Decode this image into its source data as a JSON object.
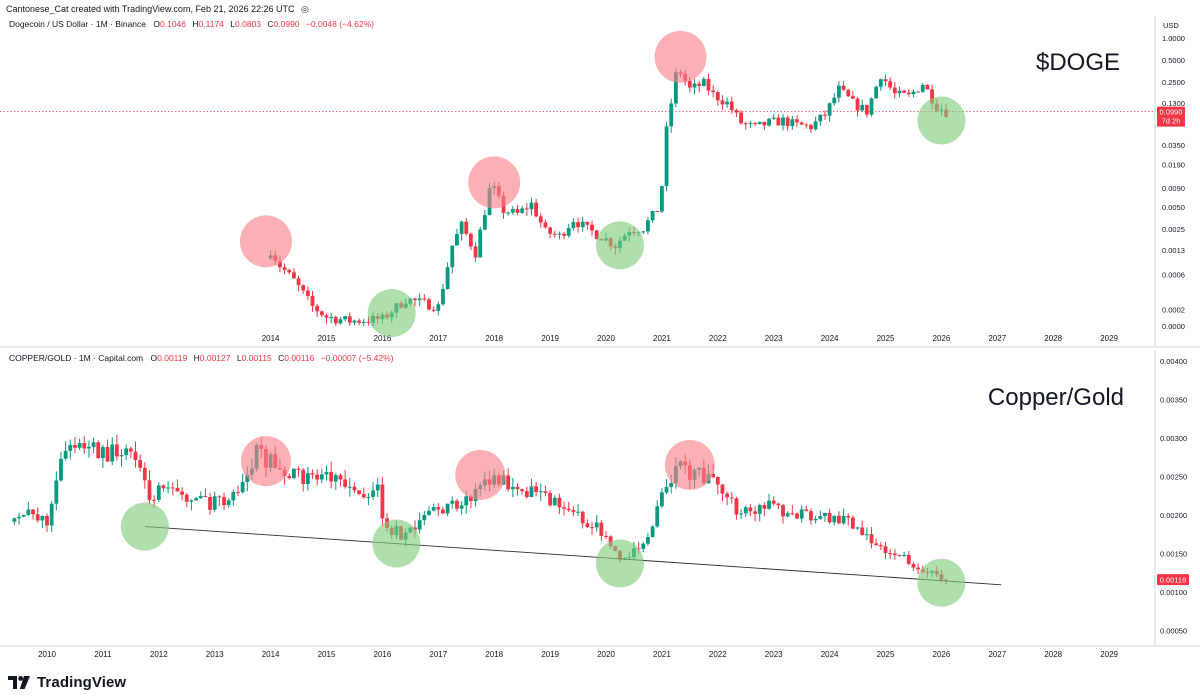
{
  "header": {
    "author_line": "Cantonese_Cat created with TradingView.com, Feb 21, 2026 22:26 UTC",
    "target_glyph": "◎"
  },
  "footer": {
    "logo_text": "TradingView"
  },
  "chart_data": [
    {
      "type": "candlestick",
      "legend": {
        "symbol": "Dogecoin / US Dollar · 1M · Binance",
        "o_label": "O",
        "o": "0.1046",
        "h_label": "H",
        "h": "0.1174",
        "l_label": "L",
        "l": "0.0803",
        "c_label": "C",
        "c": "0.0990",
        "change": "−0.0048 (−4.62%)"
      },
      "title": "$DOGE",
      "y_scale": "log",
      "currency": "USD",
      "y_ticks": [
        "1.0000",
        "0.5000",
        "0.2500",
        "0.1300",
        "0.0700",
        "0.0350",
        "0.0190",
        "0.0090",
        "0.0050",
        "0.0025",
        "0.0013",
        "0.0006",
        "0.0002",
        "0.0000"
      ],
      "x_ticks": [
        "2014",
        "2015",
        "2016",
        "2017",
        "2018",
        "2019",
        "2020",
        "2021",
        "2022",
        "2023",
        "2024",
        "2025",
        "2026",
        "2027",
        "2028",
        "2029"
      ],
      "last_price": "0.0990",
      "countdown": "7d 2h",
      "grid": false,
      "colors": {
        "up": "#089981",
        "down": "#f23645",
        "top_circle": "#f8a3a8",
        "bottom_circle": "#9ed79c"
      },
      "series": [
        {
          "name": "",
          "points": [
            [
              "2014-01",
              0.0013
            ],
            [
              "2014-03",
              0.0008
            ],
            [
              "2014-06",
              0.0005
            ],
            [
              "2014-10",
              0.00022
            ],
            [
              "2015-01",
              0.00016
            ],
            [
              "2015-06",
              0.00014
            ],
            [
              "2016-01",
              0.00015
            ],
            [
              "2016-06",
              0.00028
            ],
            [
              "2016-12",
              0.00023
            ],
            [
              "2017-01",
              0.00022
            ],
            [
              "2017-04",
              0.0015
            ],
            [
              "2017-06",
              0.0028
            ],
            [
              "2017-09",
              0.0012
            ],
            [
              "2017-12",
              0.0085
            ],
            [
              "2018-01",
              0.0085
            ],
            [
              "2018-03",
              0.0045
            ],
            [
              "2018-06",
              0.004
            ],
            [
              "2018-09",
              0.0055
            ],
            [
              "2018-12",
              0.0023
            ],
            [
              "2019-03",
              0.002
            ],
            [
              "2019-06",
              0.0034
            ],
            [
              "2019-09",
              0.0025
            ],
            [
              "2019-12",
              0.002
            ],
            [
              "2020-03",
              0.0015
            ],
            [
              "2020-06",
              0.0025
            ],
            [
              "2020-09",
              0.0026
            ],
            [
              "2020-12",
              0.0046
            ],
            [
              "2021-01",
              0.0099
            ],
            [
              "2021-02",
              0.055
            ],
            [
              "2021-04",
              0.31
            ],
            [
              "2021-05",
              0.34
            ],
            [
              "2021-07",
              0.2
            ],
            [
              "2021-10",
              0.24
            ],
            [
              "2021-12",
              0.17
            ],
            [
              "2022-03",
              0.13
            ],
            [
              "2022-06",
              0.07
            ],
            [
              "2022-09",
              0.06
            ],
            [
              "2022-12",
              0.07
            ],
            [
              "2023-03",
              0.075
            ],
            [
              "2023-06",
              0.065
            ],
            [
              "2023-09",
              0.062
            ],
            [
              "2023-12",
              0.09
            ],
            [
              "2024-03",
              0.2
            ],
            [
              "2024-06",
              0.13
            ],
            [
              "2024-09",
              0.1
            ],
            [
              "2024-12",
              0.32
            ],
            [
              "2025-03",
              0.17
            ],
            [
              "2025-06",
              0.16
            ],
            [
              "2025-09",
              0.24
            ],
            [
              "2025-12",
              0.12
            ],
            [
              "2026-02",
              0.099
            ]
          ]
        }
      ],
      "tops": [
        [
          "2013-12",
          0.0017
        ],
        [
          "2018-01",
          0.0108
        ],
        [
          "2021-05",
          0.55
        ]
      ],
      "bottoms": [
        [
          "2016-03",
          0.00018
        ],
        [
          "2020-04",
          0.0015
        ],
        [
          "2026-01",
          0.075
        ]
      ]
    },
    {
      "type": "candlestick",
      "legend": {
        "symbol": "COPPER/GOLD · 1M · Capital.com",
        "o_label": "O",
        "o": "0.00119",
        "h_label": "H",
        "h": "0.00127",
        "l_label": "L",
        "l": "0.00115",
        "c_label": "C",
        "c": "0.00116",
        "change": "−0.00007 (−5.42%)"
      },
      "title": "Copper/Gold",
      "y_scale": "linear",
      "y_ticks": [
        "0.00400",
        "0.00350",
        "0.00300",
        "0.00250",
        "0.00200",
        "0.00150",
        "0.00100",
        "0.00050"
      ],
      "x_ticks": [
        "2010",
        "2011",
        "2012",
        "2013",
        "2014",
        "2015",
        "2016",
        "2017",
        "2018",
        "2019",
        "2020",
        "2021",
        "2022",
        "2023",
        "2024",
        "2025",
        "2026",
        "2027",
        "2028",
        "2029"
      ],
      "last_price": "0.00116",
      "grid": false,
      "series": [
        {
          "name": "",
          "points": [
            [
              "2009-06",
              0.00205
            ],
            [
              "2010-01",
              0.0019
            ],
            [
              "2010-04",
              0.0028
            ],
            [
              "2010-08",
              0.00296
            ],
            [
              "2011-01",
              0.0028
            ],
            [
              "2011-07",
              0.00285
            ],
            [
              "2011-11",
              0.0022
            ],
            [
              "2012-01",
              0.0023
            ],
            [
              "2012-06",
              0.00225
            ],
            [
              "2012-12",
              0.00215
            ],
            [
              "2013-06",
              0.0023
            ],
            [
              "2013-10",
              0.0028
            ],
            [
              "2014-03",
              0.0026
            ],
            [
              "2014-07",
              0.0025
            ],
            [
              "2015-01",
              0.0025
            ],
            [
              "2015-06",
              0.0023
            ],
            [
              "2015-12",
              0.0023
            ],
            [
              "2016-01",
              0.0019
            ],
            [
              "2016-06",
              0.0017
            ],
            [
              "2016-12",
              0.0021
            ],
            [
              "2017-06",
              0.0021
            ],
            [
              "2017-12",
              0.0025
            ],
            [
              "2018-06",
              0.0024
            ],
            [
              "2018-12",
              0.0022
            ],
            [
              "2019-06",
              0.002
            ],
            [
              "2019-12",
              0.0018
            ],
            [
              "2020-04",
              0.00145
            ],
            [
              "2020-09",
              0.0016
            ],
            [
              "2021-03",
              0.0025
            ],
            [
              "2021-05",
              0.0026
            ],
            [
              "2021-10",
              0.0025
            ],
            [
              "2022-03",
              0.0023
            ],
            [
              "2022-06",
              0.002
            ],
            [
              "2022-12",
              0.0021
            ],
            [
              "2023-06",
              0.002
            ],
            [
              "2023-12",
              0.00195
            ],
            [
              "2024-06",
              0.0019
            ],
            [
              "2024-12",
              0.0016
            ],
            [
              "2025-06",
              0.0014
            ],
            [
              "2025-09",
              0.0013
            ],
            [
              "2026-01",
              0.00119
            ],
            [
              "2026-02",
              0.00116
            ]
          ]
        }
      ],
      "trendline": [
        [
          "2011-10",
          0.00185
        ],
        [
          "2026-07",
          0.00109
        ]
      ],
      "tops": [
        [
          "2013-12",
          0.0027
        ],
        [
          "2017-10",
          0.00252
        ],
        [
          "2021-07",
          0.00265
        ]
      ],
      "bottoms": [
        [
          "2011-10",
          0.00185
        ],
        [
          "2016-04",
          0.00163
        ],
        [
          "2020-04",
          0.00137
        ],
        [
          "2026-01",
          0.00112
        ]
      ]
    }
  ]
}
